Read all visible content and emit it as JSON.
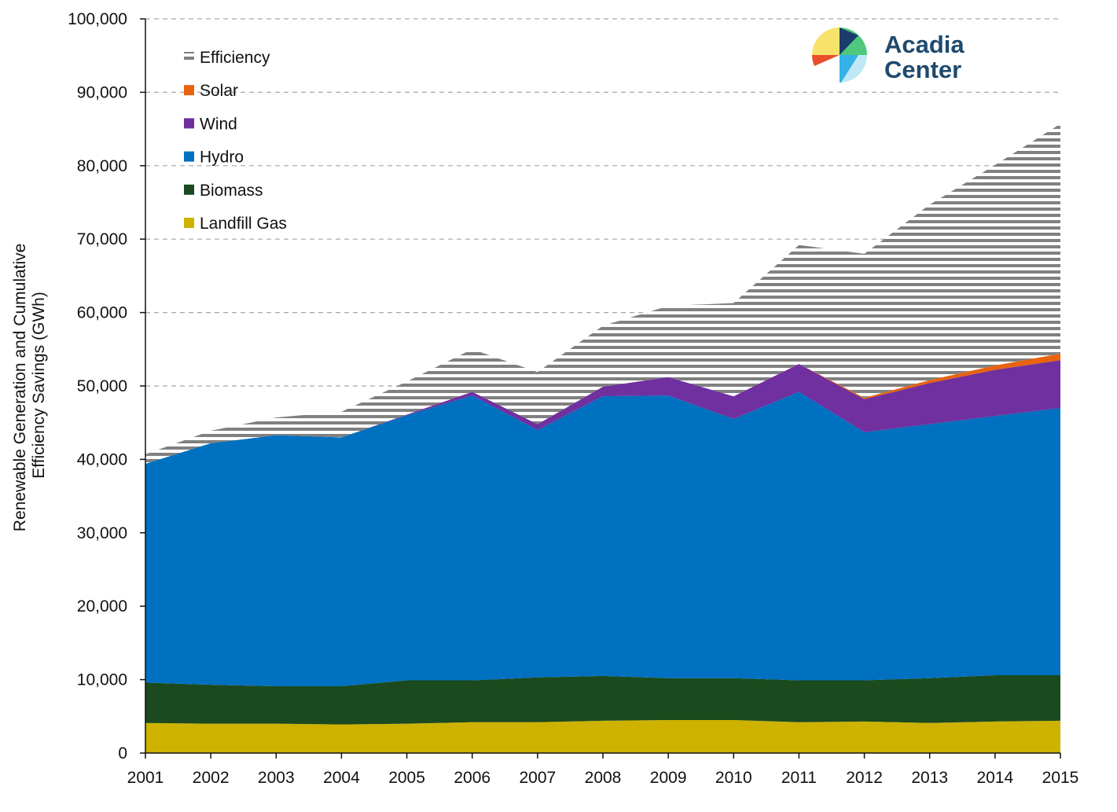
{
  "chart_data": {
    "type": "area",
    "stacked": true,
    "title": "",
    "xlabel": "",
    "ylabel": "Renewable Generation and Cumulative Efficiency Savings (GWh)",
    "ylabel_lines": [
      "Renewable Generation and Cumulative",
      "Efficiency Savings (GWh)"
    ],
    "ylim": [
      0,
      100000
    ],
    "yticks": [
      0,
      10000,
      20000,
      30000,
      40000,
      50000,
      60000,
      70000,
      80000,
      90000,
      100000
    ],
    "ytick_labels": [
      "0",
      "10,000",
      "20,000",
      "30,000",
      "40,000",
      "50,000",
      "60,000",
      "70,000",
      "80,000",
      "90,000",
      "100,000"
    ],
    "grid": "horizontal dashed",
    "legend_position": "top-left",
    "x": [
      2001,
      2002,
      2003,
      2004,
      2005,
      2006,
      2007,
      2008,
      2009,
      2010,
      2011,
      2012,
      2013,
      2014,
      2015
    ],
    "xtick_labels": [
      "2001",
      "2002",
      "2003",
      "2004",
      "2005",
      "2006",
      "2007",
      "2008",
      "2009",
      "2010",
      "2011",
      "2012",
      "2013",
      "2014",
      "2015"
    ],
    "series": [
      {
        "name": "Landfill Gas",
        "color": "#cdb200",
        "pattern": "solid",
        "values": [
          4100,
          4000,
          4000,
          3900,
          4000,
          4200,
          4200,
          4400,
          4500,
          4500,
          4200,
          4300,
          4100,
          4300,
          4400
        ]
      },
      {
        "name": "Biomass",
        "color": "#1a4a1e",
        "pattern": "solid",
        "values": [
          5500,
          5300,
          5100,
          5200,
          5900,
          5700,
          6100,
          6100,
          5700,
          5700,
          5700,
          5600,
          6100,
          6300,
          6200
        ]
      },
      {
        "name": "Hydro",
        "color": "#0070c0",
        "pattern": "solid",
        "values": [
          29800,
          32900,
          34200,
          33900,
          36100,
          38800,
          33700,
          38100,
          38500,
          35300,
          39300,
          33800,
          34600,
          35300,
          36400
        ]
      },
      {
        "name": "Wind",
        "color": "#7030a0",
        "pattern": "solid",
        "values": [
          0,
          0,
          0,
          0,
          100,
          500,
          800,
          1300,
          2500,
          3100,
          3800,
          4500,
          5600,
          6300,
          6500
        ]
      },
      {
        "name": "Solar",
        "color": "#e8630f",
        "pattern": "solid",
        "values": [
          0,
          0,
          0,
          0,
          0,
          0,
          0,
          0,
          0,
          0,
          0,
          200,
          400,
          600,
          900
        ]
      },
      {
        "name": "Efficiency",
        "color": "#808080",
        "pattern": "horizontal-lines",
        "values": [
          1300,
          1700,
          2400,
          3500,
          4500,
          5800,
          7100,
          8300,
          9700,
          12700,
          16200,
          19600,
          23900,
          27300,
          31300
        ]
      }
    ],
    "legend_order": [
      "Efficiency",
      "Solar",
      "Wind",
      "Hydro",
      "Biomass",
      "Landfill Gas"
    ]
  },
  "logo": {
    "line1": "Acadia",
    "line2": "Center",
    "text_color": "#1f4a6e",
    "colors": [
      "#f7e26b",
      "#e94f2a",
      "#1a3d6e",
      "#4ec97e",
      "#34b1e6",
      "#bfe8f7"
    ]
  }
}
